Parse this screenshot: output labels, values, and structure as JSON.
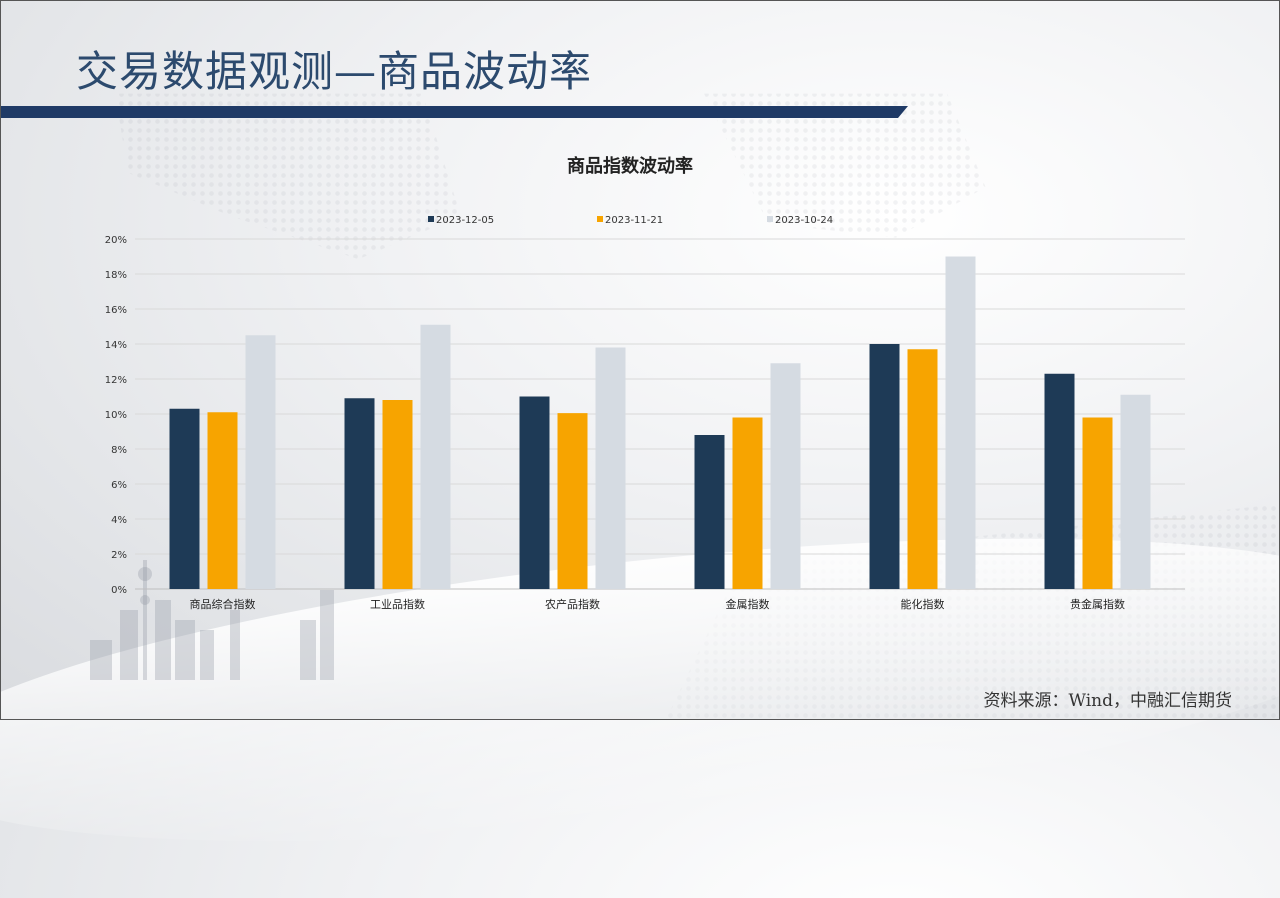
{
  "page": {
    "title": "交易数据观测—商品波动率",
    "source": "资料来源：Wind，中融汇信期货"
  },
  "colors": {
    "title": "#2c4a6e",
    "band": "#1f3a66",
    "series": [
      "#1e3a56",
      "#f7a400",
      "#d5dbe2"
    ]
  },
  "chart_data": {
    "type": "bar",
    "title": "商品指数波动率",
    "categories": [
      "商品综合指数",
      "工业品指数",
      "农产品指数",
      "金属指数",
      "能化指数",
      "贵金属指数"
    ],
    "series": [
      {
        "name": "2023-12-05",
        "values": [
          10.3,
          10.9,
          11.0,
          8.8,
          14.0,
          12.3
        ]
      },
      {
        "name": "2023-11-21",
        "values": [
          10.1,
          10.8,
          10.05,
          9.8,
          13.7,
          9.8
        ]
      },
      {
        "name": "2023-10-24",
        "values": [
          14.5,
          15.1,
          13.8,
          12.9,
          19.0,
          11.1
        ]
      }
    ],
    "ylim": [
      0,
      20
    ],
    "yticks": [
      "0%",
      "2%",
      "4%",
      "6%",
      "8%",
      "10%",
      "12%",
      "14%",
      "16%",
      "18%",
      "20%"
    ],
    "grid": true,
    "legend": "top-center"
  }
}
